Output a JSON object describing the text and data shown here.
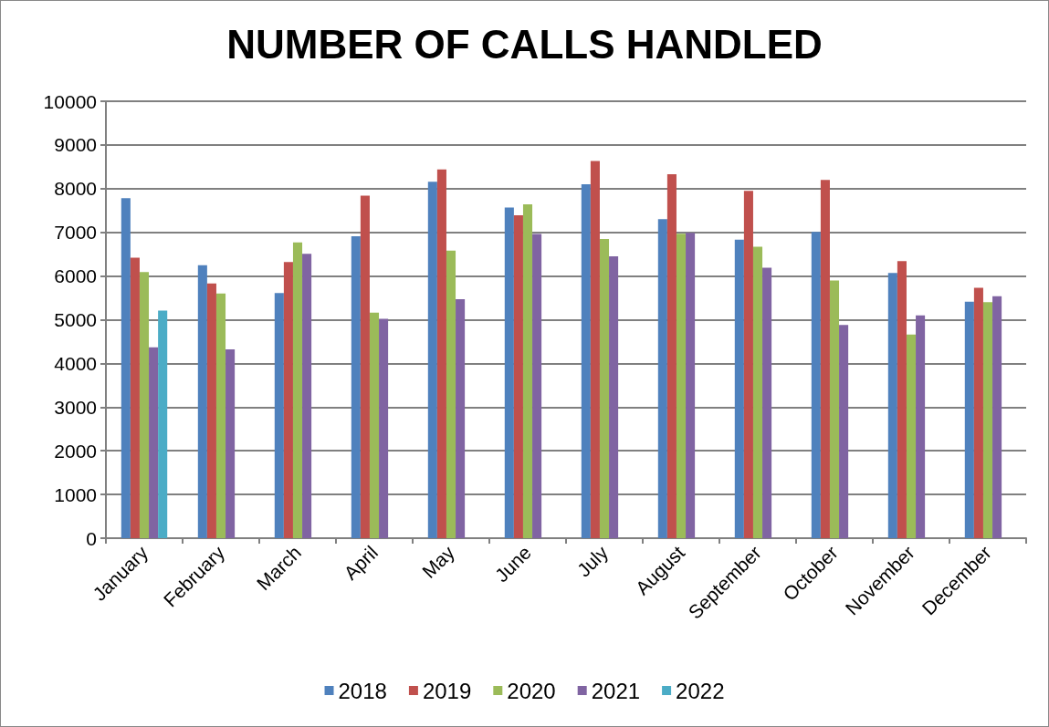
{
  "chart_data": {
    "type": "bar",
    "title": "NUMBER OF CALLS HANDLED",
    "categories": [
      "January",
      "February",
      "March",
      "April",
      "May",
      "June",
      "July",
      "August",
      "September",
      "October",
      "November",
      "December"
    ],
    "series": [
      {
        "name": "2018",
        "color": "#4f81bd",
        "values": [
          7780,
          6250,
          5610,
          6910,
          8160,
          7570,
          8100,
          7300,
          6830,
          7010,
          6070,
          5410
        ]
      },
      {
        "name": "2019",
        "color": "#c0504d",
        "values": [
          6420,
          5830,
          6320,
          7840,
          8440,
          7390,
          8630,
          8330,
          7950,
          8200,
          6340,
          5730
        ]
      },
      {
        "name": "2020",
        "color": "#9bbb59",
        "values": [
          6090,
          5600,
          6770,
          5160,
          6580,
          7640,
          6850,
          6970,
          6670,
          5900,
          4660,
          5400
        ]
      },
      {
        "name": "2021",
        "color": "#8064a2",
        "values": [
          4370,
          4320,
          6510,
          5020,
          5470,
          6960,
          6450,
          6990,
          6190,
          4880,
          5100,
          5540
        ]
      },
      {
        "name": "2022",
        "color": "#4bacc6",
        "values": [
          5210,
          null,
          null,
          null,
          null,
          null,
          null,
          null,
          null,
          null,
          null,
          null
        ]
      }
    ],
    "ylim": [
      0,
      10000
    ],
    "yticks": [
      0,
      1000,
      2000,
      3000,
      4000,
      5000,
      6000,
      7000,
      8000,
      9000,
      10000
    ],
    "grid": "y",
    "legend": "bottom"
  }
}
